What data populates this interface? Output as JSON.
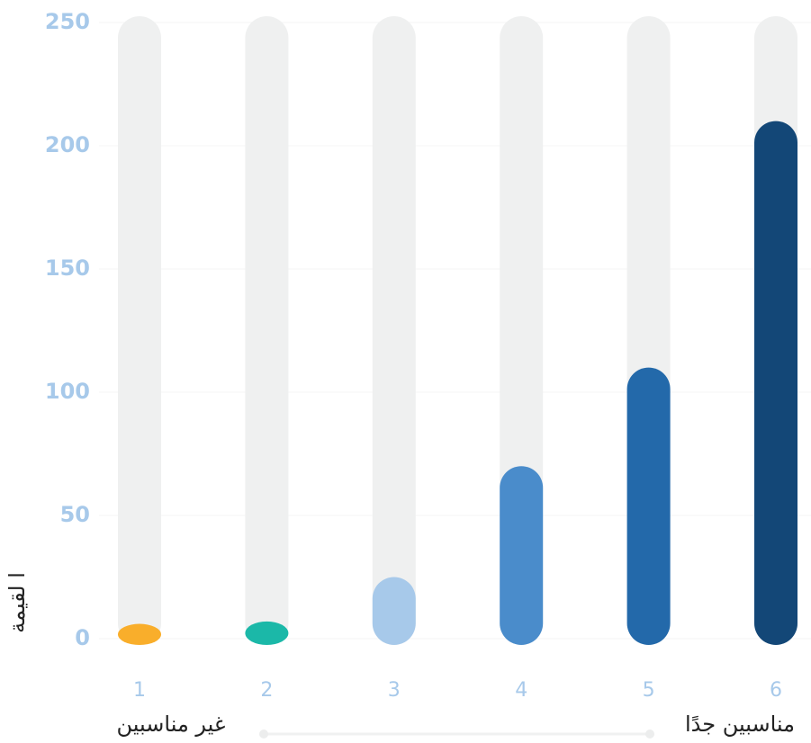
{
  "chart_data": {
    "type": "bar",
    "y_label": "ا لقيمة",
    "categories": [
      "1",
      "2",
      "3",
      "4",
      "5",
      "6"
    ],
    "values": [
      6,
      7,
      25,
      70,
      110,
      210
    ],
    "colors": [
      "#f9ae2b",
      "#1bb8a8",
      "#a7c9ea",
      "#4a8ccb",
      "#2369aa",
      "#134777"
    ],
    "track_color": "#eff0f0",
    "ylim": [
      0,
      250
    ],
    "yticks": [
      0,
      50,
      100,
      150,
      200,
      250
    ],
    "grid": true,
    "scale_low_label": "غير مناسبين",
    "scale_high_label": "مناسبين جدًا"
  }
}
